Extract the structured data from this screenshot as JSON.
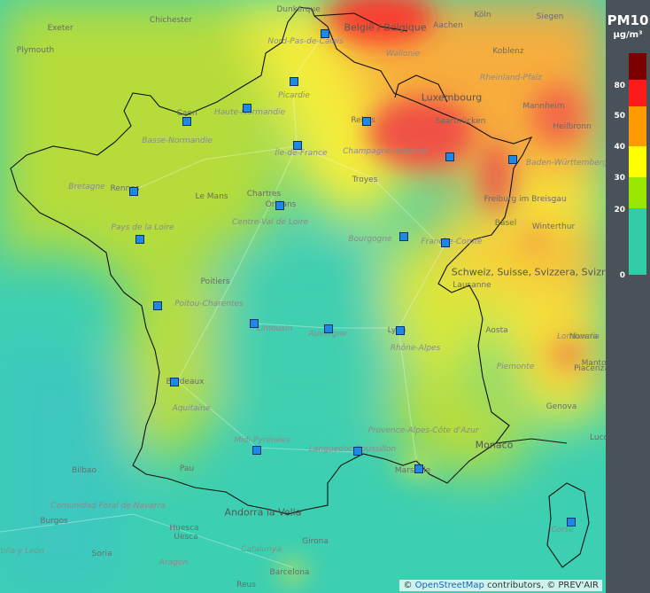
{
  "legend": {
    "title": "PM10",
    "unit": "µg/m³",
    "ticks": [
      "80",
      "50",
      "40",
      "30",
      "20",
      "0"
    ],
    "colors": [
      "#7d0000",
      "#ff1a1a",
      "#ff9900",
      "#ffff00",
      "#99e600",
      "#33cca6"
    ]
  },
  "attribution": {
    "prefix": "©",
    "osm": "OpenStreetMap",
    "suffix": " contributors, © PREV'AIR"
  },
  "places": [
    {
      "name": "Exeter",
      "kind": "city"
    },
    {
      "name": "Chichester",
      "kind": "city"
    },
    {
      "name": "Plymouth",
      "kind": "city"
    },
    {
      "name": "Dunkerque",
      "kind": "city"
    },
    {
      "name": "België / Belgique",
      "kind": "country"
    },
    {
      "name": "Aachen",
      "kind": "city"
    },
    {
      "name": "Köln",
      "kind": "city"
    },
    {
      "name": "Siegen",
      "kind": "city"
    },
    {
      "name": "Nord-Pas-de-Calais",
      "kind": "region"
    },
    {
      "name": "Wallonie",
      "kind": "region"
    },
    {
      "name": "Koblenz",
      "kind": "city"
    },
    {
      "name": "Rheinland-Pfalz",
      "kind": "region"
    },
    {
      "name": "Luxembourg",
      "kind": "country"
    },
    {
      "name": "Mannheim",
      "kind": "city"
    },
    {
      "name": "Picardie",
      "kind": "region"
    },
    {
      "name": "Caen",
      "kind": "city"
    },
    {
      "name": "Haute-Normandie",
      "kind": "region"
    },
    {
      "name": "Basse-Normandie",
      "kind": "region"
    },
    {
      "name": "Reims",
      "kind": "city"
    },
    {
      "name": "Saarbrücken",
      "kind": "city"
    },
    {
      "name": "Heilbronn",
      "kind": "city"
    },
    {
      "name": "Île-de-France",
      "kind": "region"
    },
    {
      "name": "Champagne-Ardenne",
      "kind": "region"
    },
    {
      "name": "Baden-Württemberg",
      "kind": "region"
    },
    {
      "name": "Bretagne",
      "kind": "region"
    },
    {
      "name": "Rennes",
      "kind": "city"
    },
    {
      "name": "Chartres",
      "kind": "city"
    },
    {
      "name": "Troyes",
      "kind": "city"
    },
    {
      "name": "Le Mans",
      "kind": "city"
    },
    {
      "name": "Freiburg im Breisgau",
      "kind": "city"
    },
    {
      "name": "Orléans",
      "kind": "city"
    },
    {
      "name": "Pays de la Loire",
      "kind": "region"
    },
    {
      "name": "Centre-Val de Loire",
      "kind": "region"
    },
    {
      "name": "Bourgogne",
      "kind": "region"
    },
    {
      "name": "Franche-Comté",
      "kind": "region"
    },
    {
      "name": "Basel",
      "kind": "city"
    },
    {
      "name": "Winterthur",
      "kind": "city"
    },
    {
      "name": "Schweiz, Suisse, Svizzera, Svizra",
      "kind": "country"
    },
    {
      "name": "Lausanne",
      "kind": "city"
    },
    {
      "name": "Poitiers",
      "kind": "city"
    },
    {
      "name": "Poitou-Charentes",
      "kind": "region"
    },
    {
      "name": "Limousin",
      "kind": "region"
    },
    {
      "name": "Auvergne",
      "kind": "region"
    },
    {
      "name": "Lyon",
      "kind": "city"
    },
    {
      "name": "Aosta",
      "kind": "city"
    },
    {
      "name": "Rhône-Alpes",
      "kind": "region"
    },
    {
      "name": "Novara",
      "kind": "city"
    },
    {
      "name": "Lombardia",
      "kind": "region"
    },
    {
      "name": "Mantova",
      "kind": "city"
    },
    {
      "name": "Piemonte",
      "kind": "region"
    },
    {
      "name": "Piacenza",
      "kind": "city"
    },
    {
      "name": "Bordeaux",
      "kind": "city"
    },
    {
      "name": "Aquitaine",
      "kind": "region"
    },
    {
      "name": "Genova",
      "kind": "city"
    },
    {
      "name": "Provence-Alpes-Côte d'Azur",
      "kind": "region"
    },
    {
      "name": "Monaco",
      "kind": "country"
    },
    {
      "name": "Lucca",
      "kind": "city"
    },
    {
      "name": "Midi-Pyrénées",
      "kind": "region"
    },
    {
      "name": "Languedoc-Roussillon",
      "kind": "region"
    },
    {
      "name": "Bilbao",
      "kind": "city"
    },
    {
      "name": "Pau",
      "kind": "city"
    },
    {
      "name": "Marseille",
      "kind": "city"
    },
    {
      "name": "Comunidad Foral de Navarra",
      "kind": "region"
    },
    {
      "name": "Andorra la Vella",
      "kind": "country"
    },
    {
      "name": "Burgos",
      "kind": "city"
    },
    {
      "name": "Huesca",
      "kind": "city"
    },
    {
      "name": "Uesca",
      "kind": "city"
    },
    {
      "name": "Soria",
      "kind": "city"
    },
    {
      "name": "Catalunya",
      "kind": "region"
    },
    {
      "name": "Girona",
      "kind": "city"
    },
    {
      "name": "Corse",
      "kind": "region"
    },
    {
      "name": "Aragón",
      "kind": "region"
    },
    {
      "name": "Barcelona",
      "kind": "city"
    },
    {
      "name": "Reus",
      "kind": "city"
    },
    {
      "name": "Castilla y León",
      "kind": "region"
    }
  ],
  "stations_count_label": ""
}
